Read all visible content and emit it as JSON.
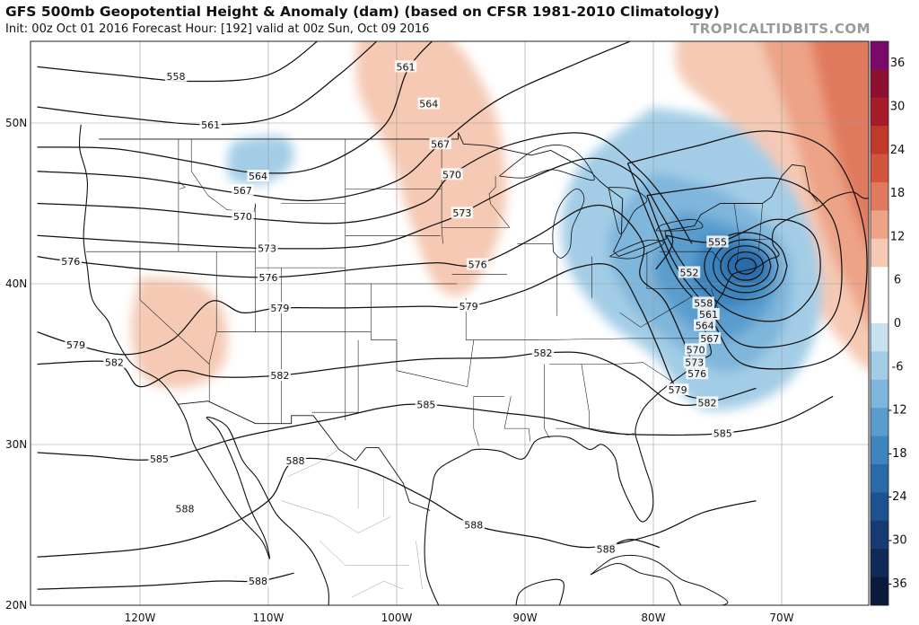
{
  "header": {
    "title": "GFS 500mb Geopotential Height & Anomaly (dam) (based on CFSR 1981-2010 Climatology)",
    "subtitle": "Init: 00z Oct 01 2016   Forecast Hour: [192]   valid at 00z Sun, Oct 09 2016",
    "watermark": "TROPICALTIDBITS.COM"
  },
  "axes": {
    "lat_labels": [
      "50N",
      "40N",
      "30N",
      "20N"
    ],
    "lon_labels": [
      "120W",
      "110W",
      "100W",
      "90W",
      "80W",
      "70W"
    ]
  },
  "colorbar": {
    "labels": [
      "36",
      "30",
      "24",
      "18",
      "12",
      "6",
      "0",
      "-6",
      "-12",
      "-18",
      "-24",
      "-30",
      "-36"
    ],
    "colors": [
      "#7a0a6a",
      "#8e1030",
      "#a81c2a",
      "#c0392b",
      "#d4553e",
      "#e07a5e",
      "#eda386",
      "#f5c9b4",
      "#ffffff",
      "#ffffff",
      "#c7e1ef",
      "#a3cde6",
      "#7fb6db",
      "#5a9dcd",
      "#3e84bd",
      "#2a6aa8",
      "#1d5190",
      "#163a74",
      "#102a58",
      "#0a1a3c"
    ]
  },
  "contours": {
    "labels": [
      "558",
      "561",
      "564",
      "567",
      "570",
      "573",
      "576",
      "579",
      "582",
      "585",
      "588",
      "552",
      "555"
    ],
    "label_positions": [
      {
        "text": "558",
        "lon": -117.2,
        "lat": 52.9
      },
      {
        "text": "561",
        "lon": -114.5,
        "lat": 49.9
      },
      {
        "text": "564",
        "lon": -110.8,
        "lat": 46.7
      },
      {
        "text": "567",
        "lon": -112.0,
        "lat": 45.8
      },
      {
        "text": "570",
        "lon": -112.0,
        "lat": 44.2
      },
      {
        "text": "573",
        "lon": -110.1,
        "lat": 42.2
      },
      {
        "text": "576",
        "lon": -125.4,
        "lat": 41.4
      },
      {
        "text": "576",
        "lon": -110.0,
        "lat": 40.4
      },
      {
        "text": "579",
        "lon": -125.0,
        "lat": 36.2
      },
      {
        "text": "579",
        "lon": -109.1,
        "lat": 38.5
      },
      {
        "text": "582",
        "lon": -122.0,
        "lat": 35.1
      },
      {
        "text": "582",
        "lon": -109.1,
        "lat": 34.3
      },
      {
        "text": "585",
        "lon": -97.7,
        "lat": 32.5
      },
      {
        "text": "585",
        "lon": -118.5,
        "lat": 29.1
      },
      {
        "text": "588",
        "lon": -107.9,
        "lat": 29.0
      },
      {
        "text": "588",
        "lon": -116.5,
        "lat": 26.0
      },
      {
        "text": "588",
        "lon": -94.0,
        "lat": 25.0
      },
      {
        "text": "588",
        "lon": -110.8,
        "lat": 21.5
      },
      {
        "text": "588",
        "lon": -83.7,
        "lat": 23.5
      },
      {
        "text": "561",
        "lon": -99.3,
        "lat": 53.5
      },
      {
        "text": "564",
        "lon": -97.5,
        "lat": 51.2
      },
      {
        "text": "567",
        "lon": -96.6,
        "lat": 48.7
      },
      {
        "text": "570",
        "lon": -95.7,
        "lat": 46.8
      },
      {
        "text": "573",
        "lon": -94.9,
        "lat": 44.4
      },
      {
        "text": "576",
        "lon": -93.7,
        "lat": 41.2
      },
      {
        "text": "579",
        "lon": -94.4,
        "lat": 38.6
      },
      {
        "text": "582",
        "lon": -88.6,
        "lat": 35.7
      },
      {
        "text": "582",
        "lon": -75.8,
        "lat": 32.6
      },
      {
        "text": "585",
        "lon": -74.6,
        "lat": 30.7
      },
      {
        "text": "552",
        "lon": -77.2,
        "lat": 40.7
      },
      {
        "text": "555",
        "lon": -75.0,
        "lat": 42.6
      },
      {
        "text": "558",
        "lon": -76.1,
        "lat": 38.8
      },
      {
        "text": "561",
        "lon": -75.7,
        "lat": 38.1
      },
      {
        "text": "564",
        "lon": -76.0,
        "lat": 37.4
      },
      {
        "text": "567",
        "lon": -75.6,
        "lat": 36.6
      },
      {
        "text": "570",
        "lon": -76.7,
        "lat": 35.9
      },
      {
        "text": "573",
        "lon": -76.8,
        "lat": 35.1
      },
      {
        "text": "576",
        "lon": -76.6,
        "lat": 34.4
      },
      {
        "text": "579",
        "lon": -78.1,
        "lat": 33.4
      }
    ]
  }
}
